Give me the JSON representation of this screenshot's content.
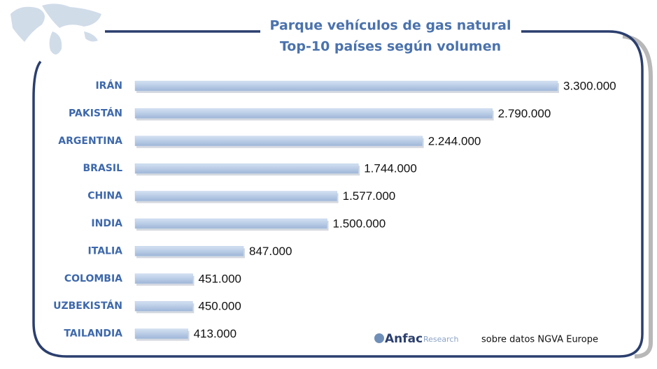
{
  "chart_data": {
    "type": "hbar",
    "title": "Parque vehículos de gas natural",
    "subtitle": "Top-10 países según volumen",
    "categories": [
      "IRÁN",
      "PAKISTÁN",
      "ARGENTINA",
      "BRASIL",
      "CHINA",
      "INDIA",
      "ITALIA",
      "COLOMBIA",
      "UZBEKISTÁN",
      "TAILANDIA"
    ],
    "values": [
      3300000,
      2790000,
      2244000,
      1744000,
      1577000,
      1500000,
      847000,
      451000,
      450000,
      413000
    ],
    "value_labels": [
      "3.300.000",
      "2.790.000",
      "2.244.000",
      "1.744.000",
      "1.577.000",
      "1.500.000",
      "847.000",
      "451.000",
      "450.000",
      "413.000"
    ],
    "color": "#b9cce6",
    "source_logo": "Anfac",
    "source_logo_sub": "Research",
    "source": "sobre datos NGVA Europe"
  }
}
